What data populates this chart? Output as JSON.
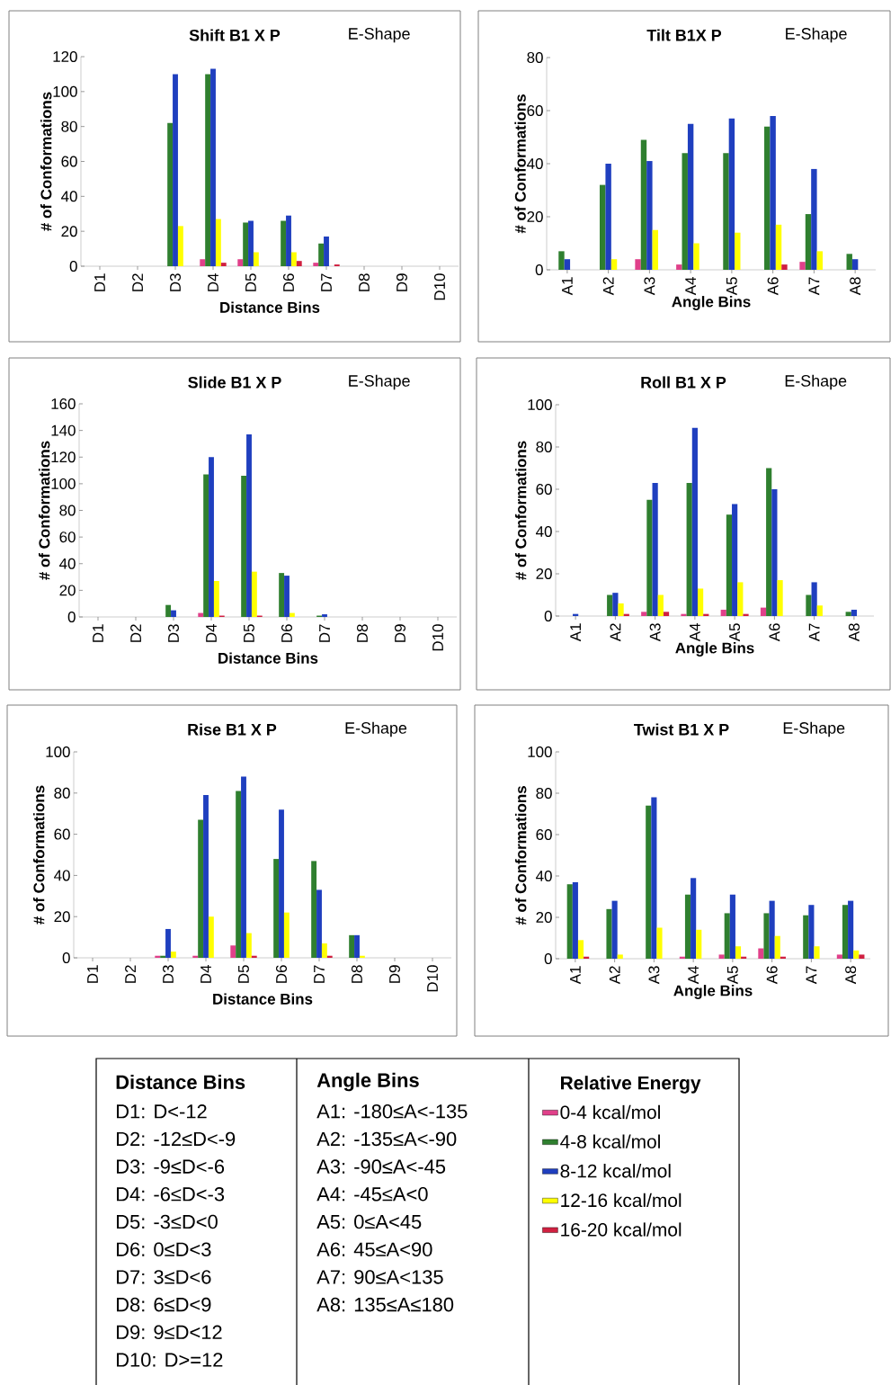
{
  "chart_data": [
    {
      "type": "bar",
      "title": "Shift B1 X P",
      "subtitle": "E-Shape",
      "xlabel": "Distance Bins",
      "ylabel": "# of Conformations",
      "categories": [
        "D1",
        "D2",
        "D3",
        "D4",
        "D5",
        "D6",
        "D7",
        "D8",
        "D9",
        "D10"
      ],
      "ylim": [
        0,
        120
      ],
      "yticks": [
        0,
        20,
        40,
        60,
        80,
        100,
        120
      ],
      "legend": false,
      "series": [
        {
          "color": "#e0408a",
          "values": [
            0,
            0,
            0,
            4,
            4,
            0,
            2,
            0,
            0,
            0
          ]
        },
        {
          "color": "#2f7f2f",
          "values": [
            0,
            0,
            82,
            110,
            25,
            26,
            13,
            0,
            0,
            0
          ]
        },
        {
          "color": "#1f3fbf",
          "values": [
            0,
            0,
            110,
            113,
            26,
            29,
            17,
            0,
            0,
            0
          ]
        },
        {
          "color": "#ffff00",
          "values": [
            0,
            0,
            23,
            27,
            8,
            8,
            0,
            0,
            0,
            0
          ]
        },
        {
          "color": "#d02040",
          "values": [
            0,
            0,
            0,
            2,
            0,
            3,
            1,
            0,
            0,
            0
          ]
        }
      ]
    },
    {
      "type": "bar",
      "title": "Tilt B1X P",
      "subtitle": "E-Shape",
      "xlabel": "Angle Bins",
      "ylabel": "# of Conformations",
      "categories": [
        "A1",
        "A2",
        "A3",
        "A4",
        "A5",
        "A6",
        "A7",
        "A8"
      ],
      "ylim": [
        0,
        80
      ],
      "yticks": [
        0,
        20,
        40,
        60,
        80
      ],
      "legend": false,
      "series": [
        {
          "color": "#e0408a",
          "values": [
            0,
            0,
            4,
            2,
            0,
            0,
            3,
            0
          ]
        },
        {
          "color": "#2f7f2f",
          "values": [
            7,
            32,
            49,
            44,
            44,
            54,
            21,
            6
          ]
        },
        {
          "color": "#1f3fbf",
          "values": [
            4,
            40,
            41,
            55,
            57,
            58,
            38,
            4
          ]
        },
        {
          "color": "#ffff00",
          "values": [
            0,
            4,
            15,
            10,
            14,
            17,
            7,
            0
          ]
        },
        {
          "color": "#d02040",
          "values": [
            0,
            0,
            0,
            0,
            0,
            2,
            0,
            0
          ]
        }
      ]
    },
    {
      "type": "bar",
      "title": "Slide B1 X P",
      "subtitle": "E-Shape",
      "xlabel": "Distance Bins",
      "ylabel": "# of Conformations",
      "categories": [
        "D1",
        "D2",
        "D3",
        "D4",
        "D5",
        "D6",
        "D7",
        "D8",
        "D9",
        "D10"
      ],
      "ylim": [
        0,
        160
      ],
      "yticks": [
        0,
        20,
        40,
        60,
        80,
        100,
        120,
        140,
        160
      ],
      "legend": false,
      "series": [
        {
          "color": "#e0408a",
          "values": [
            0,
            0,
            0,
            3,
            0,
            0,
            0,
            0,
            0,
            0
          ]
        },
        {
          "color": "#2f7f2f",
          "values": [
            0,
            0,
            9,
            107,
            106,
            33,
            1,
            0,
            0,
            0
          ]
        },
        {
          "color": "#1f3fbf",
          "values": [
            0,
            0,
            5,
            120,
            137,
            31,
            2,
            0,
            0,
            0
          ]
        },
        {
          "color": "#ffff00",
          "values": [
            0,
            0,
            0,
            27,
            34,
            3,
            0,
            0,
            0,
            0
          ]
        },
        {
          "color": "#d02040",
          "values": [
            0,
            0,
            0,
            1,
            1,
            0,
            0,
            0,
            0,
            0
          ]
        }
      ]
    },
    {
      "type": "bar",
      "title": "Roll B1 X P",
      "subtitle": "E-Shape",
      "xlabel": "Angle Bins",
      "ylabel": "# of Conformations",
      "categories": [
        "A1",
        "A2",
        "A3",
        "A4",
        "A5",
        "A6",
        "A7",
        "A8"
      ],
      "ylim": [
        0,
        100
      ],
      "yticks": [
        0,
        20,
        40,
        60,
        80,
        100
      ],
      "legend": false,
      "series": [
        {
          "color": "#e0408a",
          "values": [
            0,
            0,
            2,
            1,
            3,
            4,
            0,
            0
          ]
        },
        {
          "color": "#2f7f2f",
          "values": [
            0,
            10,
            55,
            63,
            48,
            70,
            10,
            2
          ]
        },
        {
          "color": "#1f3fbf",
          "values": [
            1,
            11,
            63,
            89,
            53,
            60,
            16,
            3
          ]
        },
        {
          "color": "#ffff00",
          "values": [
            0,
            6,
            10,
            13,
            16,
            17,
            5,
            0
          ]
        },
        {
          "color": "#d02040",
          "values": [
            0,
            1,
            2,
            1,
            1,
            0,
            0,
            0
          ]
        }
      ]
    },
    {
      "type": "bar",
      "title": "Rise B1 X P",
      "subtitle": "E-Shape",
      "xlabel": "Distance Bins",
      "ylabel": "# of Conformations",
      "categories": [
        "D1",
        "D2",
        "D3",
        "D4",
        "D5",
        "D6",
        "D7",
        "D8",
        "D9",
        "D10"
      ],
      "ylim": [
        0,
        100
      ],
      "yticks": [
        0,
        20,
        40,
        60,
        80,
        100
      ],
      "legend": false,
      "series": [
        {
          "color": "#e0408a",
          "values": [
            0,
            0,
            1,
            1,
            6,
            0,
            0,
            0,
            0,
            0
          ]
        },
        {
          "color": "#2f7f2f",
          "values": [
            0,
            0,
            1,
            67,
            81,
            48,
            47,
            11,
            0,
            0
          ]
        },
        {
          "color": "#1f3fbf",
          "values": [
            0,
            0,
            14,
            79,
            88,
            72,
            33,
            11,
            0,
            0
          ]
        },
        {
          "color": "#ffff00",
          "values": [
            0,
            0,
            3,
            20,
            12,
            22,
            7,
            1,
            0,
            0
          ]
        },
        {
          "color": "#d02040",
          "values": [
            0,
            0,
            0,
            0,
            1,
            0,
            1,
            0,
            0,
            0
          ]
        }
      ]
    },
    {
      "type": "bar",
      "title": "Twist B1 X P",
      "subtitle": "E-Shape",
      "xlabel": "Angle Bins",
      "ylabel": "# of Conformations",
      "categories": [
        "A1",
        "A2",
        "A3",
        "A4",
        "A5",
        "A6",
        "A7",
        "A8"
      ],
      "ylim": [
        0,
        100
      ],
      "yticks": [
        0,
        20,
        40,
        60,
        80,
        100
      ],
      "legend": "bottom",
      "legend_title": "Relative Energy",
      "series": [
        {
          "name": "0-4 kcal/mol",
          "color": "#e0408a",
          "values": [
            0,
            0,
            0,
            1,
            2,
            5,
            0,
            2
          ]
        },
        {
          "name": "4-8 kcal/mol",
          "color": "#2f7f2f",
          "values": [
            36,
            24,
            74,
            31,
            22,
            22,
            21,
            26
          ]
        },
        {
          "name": "8-12 kcal/mol",
          "color": "#1f3fbf",
          "values": [
            37,
            28,
            78,
            39,
            31,
            28,
            26,
            28
          ]
        },
        {
          "name": "12-16 kcal/mol",
          "color": "#ffff00",
          "values": [
            9,
            2,
            15,
            14,
            6,
            11,
            6,
            4
          ]
        },
        {
          "name": "16-20 kcal/mol",
          "color": "#d02040",
          "values": [
            1,
            0,
            0,
            0,
            1,
            1,
            0,
            2
          ]
        }
      ]
    },
    {
      "type": "other",
      "annotations": [
        "Distance Bins",
        "D1:  D<-12",
        "D2: -12≤D<-9",
        "D3: -9≤D<-6",
        "D4: -6≤D<-3",
        "D5: -3≤D<0",
        "D6:  0≤D<3",
        "D7:  3≤D<6",
        "D8:  6≤D<9",
        "D9:  9≤D<12",
        "D10: D>=12",
        "Angle Bins",
        "A1: -180≤A<-135",
        "A2: -135≤A<-90",
        "A3: -90≤A<-45",
        "A4: -45≤A<0",
        "A5: 0≤A<45",
        "A6: 45≤A<90",
        "A7: 90≤A<135",
        "A8: 135≤A≤180"
      ]
    }
  ]
}
